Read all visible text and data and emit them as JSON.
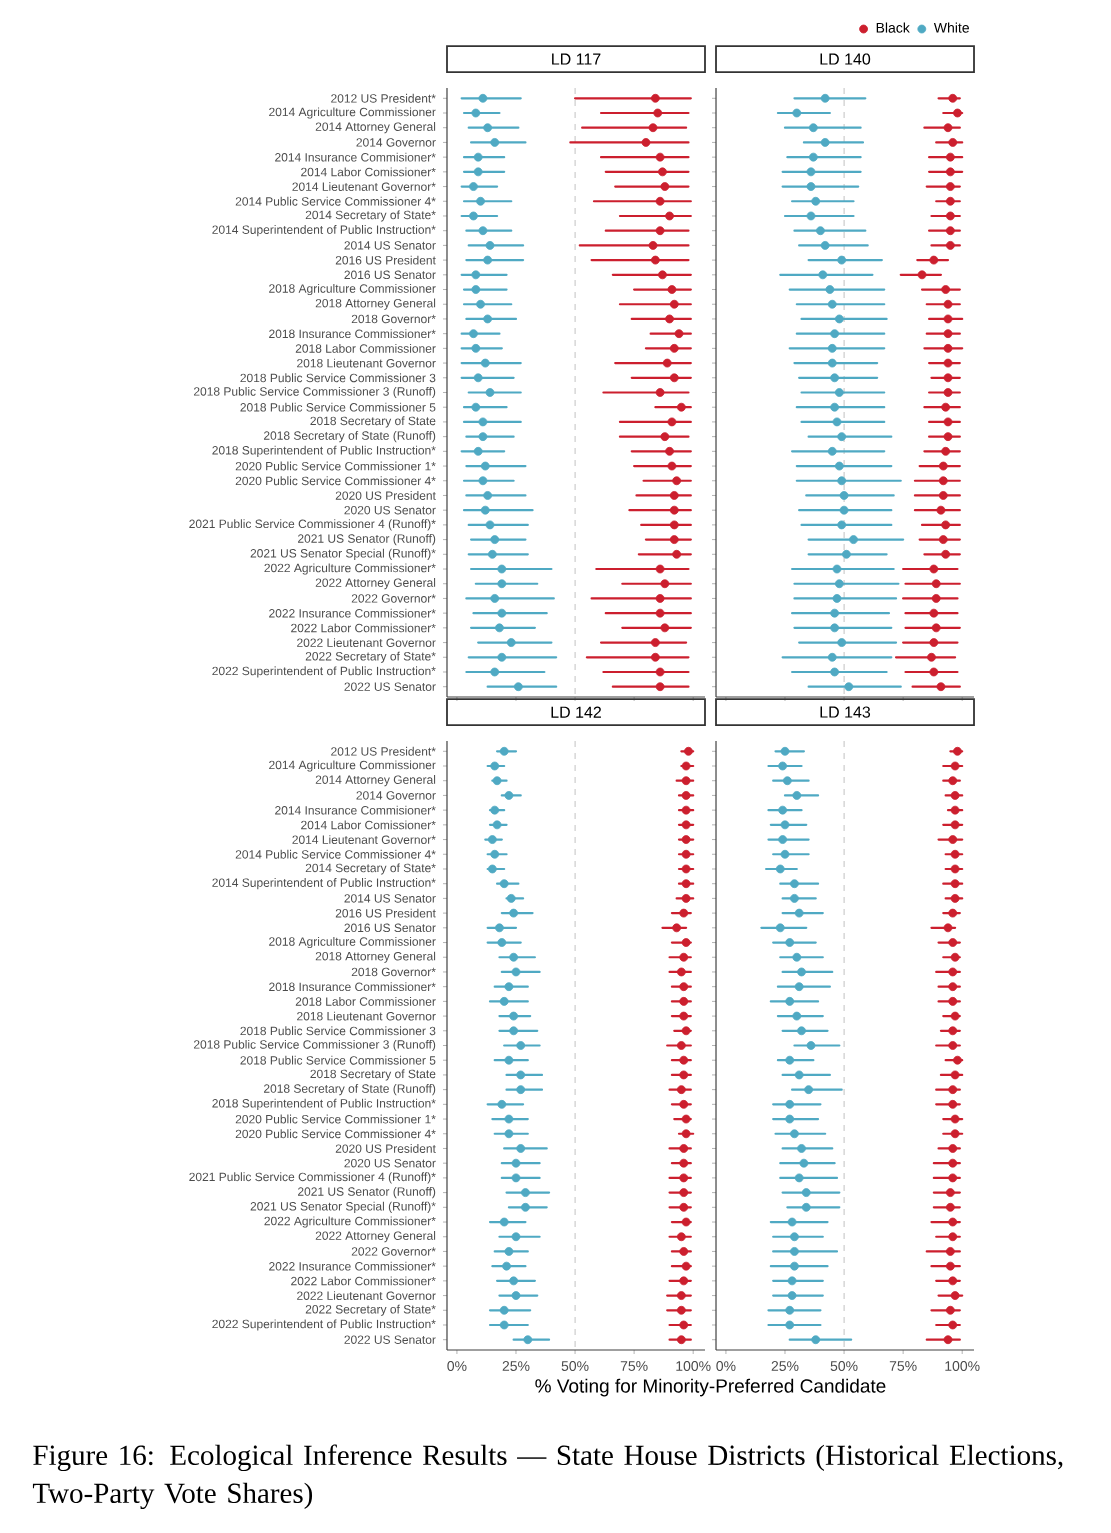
{
  "chart_data": [
    {
      "type": "scatter",
      "orientation": "horizontal",
      "title": "LD 117",
      "tick_labels": "y",
      "marker": "circle",
      "xlim": [
        -4.2,
        105
      ],
      "xticks": [
        {
          "value": 0,
          "label": null
        },
        {
          "value": 25,
          "label": null
        },
        {
          "value": 50,
          "label": null
        },
        {
          "value": 75,
          "label": null
        },
        {
          "value": 100,
          "label": null
        }
      ],
      "categories": [
        "2012 US President*",
        "2014 Agriculture Commissioner",
        "2014 Attorney General",
        "2014 Governor",
        "2014 Insurance Commisioner*",
        "2014 Labor Comissioner*",
        "2014 Lieutenant Governor*",
        "2014 Public Service Commissioner 4*",
        "2014 Secretary of State*",
        "2014 Superintendent of Public Instruction*",
        "2014 US Senator",
        "2016 US President",
        "2016 US Senator",
        "2018 Agriculture Commissioner",
        "2018 Attorney General",
        "2018 Governor*",
        "2018 Insurance Commissioner*",
        "2018 Labor Commissioner",
        "2018 Lieutenant Governor",
        "2018 Public Service Commissioner 3",
        "2018 Public Service Commissioner 3 (Runoff)",
        "2018 Public Service Commissioner 5",
        "2018 Secretary of State",
        "2018 Secretary of State (Runoff)",
        "2018 Superintendent of Public Instruction*",
        "2020 Public Service Commissioner 1*",
        "2020 Public Service Commissioner 4*",
        "2020 US President",
        "2020 US Senator",
        "2021 Public Service Commissioner 4 (Runoff)*",
        "2021 US Senator (Runoff)",
        "2021 US Senator Special (Runoff)*",
        "2022 Agriculture Commissioner*",
        "2022 Attorney General",
        "2022 Governor*",
        "2022 Insurance Commissioner*",
        "2022 Labor Commissioner*",
        "2022 Lieutenant Governor",
        "2022 Secretary of State*",
        "2022 Superintendent of Public Instruction*",
        "2022 US Senator"
      ],
      "ref_lines": [
        {
          "axis": "x",
          "value": 50,
          "color": "#bdbdbd",
          "line_style": "dashed"
        }
      ],
      "series": [
        {
          "color": "#cc1f2e",
          "values": [
            84,
            85,
            83,
            80,
            86,
            87,
            88,
            86,
            90,
            86,
            83,
            84,
            87,
            91,
            92,
            90,
            94,
            92,
            89,
            92,
            86,
            95,
            91,
            88,
            90,
            91,
            93,
            92,
            92,
            92,
            92,
            93,
            86,
            88,
            86,
            86,
            88,
            84,
            84,
            86,
            86
          ],
          "errors": [
            [
              50,
              99
            ],
            [
              61,
              98
            ],
            [
              53,
              97
            ],
            [
              48,
              98
            ],
            [
              61,
              98
            ],
            [
              63,
              98
            ],
            [
              67,
              98
            ],
            [
              58,
              99
            ],
            [
              69,
              99
            ],
            [
              63,
              98
            ],
            [
              52,
              98
            ],
            [
              57,
              98
            ],
            [
              66,
              99
            ],
            [
              75,
              99
            ],
            [
              69,
              99
            ],
            [
              74,
              99
            ],
            [
              82,
              99
            ],
            [
              80,
              99
            ],
            [
              67,
              99
            ],
            [
              74,
              99
            ],
            [
              62,
              98
            ],
            [
              84,
              99
            ],
            [
              69,
              99
            ],
            [
              69,
              98
            ],
            [
              74,
              99
            ],
            [
              75,
              99
            ],
            [
              79,
              99
            ],
            [
              76,
              99
            ],
            [
              73,
              99
            ],
            [
              78,
              99
            ],
            [
              80,
              99
            ],
            [
              77,
              99
            ],
            [
              59,
              98
            ],
            [
              70,
              99
            ],
            [
              57,
              99
            ],
            [
              63,
              99
            ],
            [
              70,
              99
            ],
            [
              61,
              97
            ],
            [
              55,
              98
            ],
            [
              62,
              98
            ],
            [
              66,
              98
            ]
          ]
        },
        {
          "color": "#4fa9c3",
          "values": [
            11,
            8,
            13,
            16,
            9,
            9,
            7,
            10,
            7,
            11,
            14,
            13,
            8,
            8,
            10,
            13,
            7,
            8,
            12,
            9,
            14,
            8,
            11,
            11,
            9,
            12,
            11,
            13,
            12,
            14,
            16,
            15,
            19,
            19,
            16,
            19,
            18,
            23,
            19,
            16,
            26
          ],
          "errors": [
            [
              2,
              27
            ],
            [
              3,
              18
            ],
            [
              5,
              26
            ],
            [
              6,
              29
            ],
            [
              3,
              20
            ],
            [
              3,
              20
            ],
            [
              2,
              17
            ],
            [
              3,
              23
            ],
            [
              2,
              17
            ],
            [
              4,
              23
            ],
            [
              5,
              28
            ],
            [
              4,
              28
            ],
            [
              2,
              21
            ],
            [
              3,
              21
            ],
            [
              3,
              23
            ],
            [
              4,
              25
            ],
            [
              2,
              18
            ],
            [
              2,
              19
            ],
            [
              2,
              27
            ],
            [
              2,
              24
            ],
            [
              5,
              27
            ],
            [
              3,
              21
            ],
            [
              3,
              27
            ],
            [
              4,
              24
            ],
            [
              2,
              20
            ],
            [
              4,
              29
            ],
            [
              3,
              24
            ],
            [
              4,
              29
            ],
            [
              3,
              32
            ],
            [
              5,
              30
            ],
            [
              6,
              29
            ],
            [
              5,
              30
            ],
            [
              6,
              40
            ],
            [
              8,
              34
            ],
            [
              4,
              41
            ],
            [
              7,
              38
            ],
            [
              6,
              33
            ],
            [
              9,
              40
            ],
            [
              5,
              42
            ],
            [
              4,
              37
            ],
            [
              13,
              42
            ]
          ]
        }
      ]
    },
    {
      "type": "scatter",
      "orientation": "horizontal",
      "title": "LD 140",
      "tick_labels": false,
      "marker": "circle",
      "legend": "top right",
      "xlim": [
        -4.2,
        105
      ],
      "xticks": [
        {
          "value": 0,
          "label": null
        },
        {
          "value": 25,
          "label": null
        },
        {
          "value": 50,
          "label": null
        },
        {
          "value": 75,
          "label": null
        },
        {
          "value": 100,
          "label": null
        }
      ],
      "categories": [
        null,
        null,
        null,
        null,
        null,
        null,
        null,
        null,
        null,
        null,
        null,
        null,
        null,
        null,
        null,
        null,
        null,
        null,
        null,
        null,
        null,
        null,
        null,
        null,
        null,
        null,
        null,
        null,
        null,
        null,
        null,
        null,
        null,
        null,
        null,
        null,
        null,
        null,
        null,
        null,
        null
      ],
      "ref_lines": [
        {
          "axis": "x",
          "value": 50,
          "color": "#bdbdbd",
          "line_style": "dashed"
        }
      ],
      "series": [
        {
          "name": "Black",
          "color": "#cc1f2e",
          "values": [
            96,
            98,
            94,
            96,
            95,
            95,
            95,
            95,
            95,
            95,
            95,
            88,
            83,
            93,
            94,
            94,
            94,
            94,
            94,
            94,
            94,
            93,
            94,
            94,
            93,
            92,
            92,
            92,
            91,
            93,
            92,
            93,
            88,
            89,
            89,
            88,
            89,
            88,
            87,
            88,
            91
          ],
          "errors": [
            [
              90,
              99
            ],
            [
              92,
              100
            ],
            [
              84,
              99
            ],
            [
              89,
              100
            ],
            [
              86,
              100
            ],
            [
              86,
              100
            ],
            [
              85,
              99
            ],
            [
              89,
              99
            ],
            [
              87,
              99
            ],
            [
              86,
              99
            ],
            [
              87,
              99
            ],
            [
              81,
              94
            ],
            [
              74,
              91
            ],
            [
              83,
              99
            ],
            [
              85,
              99
            ],
            [
              86,
              100
            ],
            [
              85,
              99
            ],
            [
              84,
              100
            ],
            [
              86,
              99
            ],
            [
              87,
              99
            ],
            [
              86,
              99
            ],
            [
              84,
              99
            ],
            [
              86,
              99
            ],
            [
              86,
              99
            ],
            [
              84,
              99
            ],
            [
              82,
              99
            ],
            [
              80,
              99
            ],
            [
              80,
              99
            ],
            [
              80,
              99
            ],
            [
              83,
              99
            ],
            [
              82,
              99
            ],
            [
              84,
              99
            ],
            [
              75,
              98
            ],
            [
              76,
              99
            ],
            [
              75,
              98
            ],
            [
              76,
              98
            ],
            [
              76,
              99
            ],
            [
              75,
              98
            ],
            [
              72,
              97
            ],
            [
              76,
              98
            ],
            [
              79,
              99
            ]
          ]
        },
        {
          "name": "White",
          "color": "#4fa9c3",
          "values": [
            42,
            30,
            37,
            42,
            37,
            36,
            36,
            38,
            36,
            40,
            42,
            49,
            41,
            44,
            45,
            48,
            46,
            45,
            45,
            46,
            48,
            46,
            47,
            49,
            45,
            48,
            49,
            50,
            50,
            49,
            54,
            51,
            47,
            48,
            47,
            46,
            46,
            49,
            45,
            46,
            52
          ],
          "errors": [
            [
              29,
              59
            ],
            [
              22,
              44
            ],
            [
              25,
              57
            ],
            [
              33,
              58
            ],
            [
              26,
              57
            ],
            [
              24,
              57
            ],
            [
              24,
              56
            ],
            [
              28,
              54
            ],
            [
              25,
              54
            ],
            [
              29,
              59
            ],
            [
              31,
              60
            ],
            [
              35,
              66
            ],
            [
              23,
              62
            ],
            [
              27,
              67
            ],
            [
              30,
              67
            ],
            [
              32,
              68
            ],
            [
              30,
              67
            ],
            [
              27,
              67
            ],
            [
              29,
              64
            ],
            [
              31,
              64
            ],
            [
              32,
              67
            ],
            [
              30,
              67
            ],
            [
              32,
              67
            ],
            [
              35,
              70
            ],
            [
              28,
              67
            ],
            [
              30,
              70
            ],
            [
              30,
              74
            ],
            [
              34,
              71
            ],
            [
              31,
              70
            ],
            [
              32,
              70
            ],
            [
              35,
              75
            ],
            [
              35,
              68
            ],
            [
              28,
              71
            ],
            [
              29,
              73
            ],
            [
              29,
              72
            ],
            [
              28,
              69
            ],
            [
              29,
              70
            ],
            [
              31,
              72
            ],
            [
              24,
              70
            ],
            [
              28,
              68
            ],
            [
              35,
              74
            ]
          ]
        }
      ]
    },
    {
      "type": "scatter",
      "orientation": "horizontal",
      "title": "LD 142",
      "marker": "circle",
      "xlim": [
        -4.2,
        105
      ],
      "xlabel": "% Voting for Minority-Preferred Candidate",
      "annotations": [
        "Figure 16: Ecological Inference Results — State House Districts (Historical Elections, Two-Party Vote Shares)"
      ],
      "xticks": [
        {
          "value": 0,
          "label": "0%"
        },
        {
          "value": 25,
          "label": "25%"
        },
        {
          "value": 50,
          "label": "50%"
        },
        {
          "value": 75,
          "label": "75%"
        },
        {
          "value": 100,
          "label": "100%"
        }
      ],
      "categories": [
        "2012 US President*",
        "2014 Agriculture Commissioner",
        "2014 Attorney General",
        "2014 Governor",
        "2014 Insurance Commisioner*",
        "2014 Labor Comissioner*",
        "2014 Lieutenant Governor*",
        "2014 Public Service Commissioner 4*",
        "2014 Secretary of State*",
        "2014 Superintendent of Public Instruction*",
        "2014 US Senator",
        "2016 US President",
        "2016 US Senator",
        "2018 Agriculture Commissioner",
        "2018 Attorney General",
        "2018 Governor*",
        "2018 Insurance Commissioner*",
        "2018 Labor Commissioner",
        "2018 Lieutenant Governor",
        "2018 Public Service Commissioner 3",
        "2018 Public Service Commissioner 3 (Runoff)",
        "2018 Public Service Commissioner 5",
        "2018 Secretary of State",
        "2018 Secretary of State (Runoff)",
        "2018 Superintendent of Public Instruction*",
        "2020 Public Service Commissioner 1*",
        "2020 Public Service Commissioner 4*",
        "2020 US President",
        "2020 US Senator",
        "2021 Public Service Commissioner 4 (Runoff)*",
        "2021 US Senator (Runoff)",
        "2021 US Senator Special (Runoff)*",
        "2022 Agriculture Commissioner*",
        "2022 Attorney General",
        "2022 Governor*",
        "2022 Insurance Commissioner*",
        "2022 Labor Commissioner*",
        "2022 Lieutenant Governor",
        "2022 Secretary of State*",
        "2022 Superintendent of Public Instruction*",
        "2022 US Senator"
      ],
      "ref_lines": [
        {
          "axis": "x",
          "value": 50,
          "color": "#bdbdbd",
          "line_style": "dashed"
        }
      ],
      "series": [
        {
          "color": "#cc1f2e",
          "values": [
            98,
            97,
            97,
            97,
            97,
            97,
            97,
            97,
            97,
            97,
            97,
            96,
            93,
            97,
            96,
            95,
            96,
            96,
            96,
            97,
            95,
            96,
            96,
            95,
            96,
            97,
            97,
            96,
            96,
            96,
            96,
            96,
            97,
            95,
            96,
            97,
            96,
            95,
            95,
            96,
            95
          ],
          "errors": [
            [
              95,
              100
            ],
            [
              95,
              100
            ],
            [
              93,
              100
            ],
            [
              94,
              100
            ],
            [
              94,
              100
            ],
            [
              94,
              100
            ],
            [
              94,
              100
            ],
            [
              94,
              100
            ],
            [
              94,
              100
            ],
            [
              94,
              100
            ],
            [
              93,
              100
            ],
            [
              91,
              99
            ],
            [
              87,
              97
            ],
            [
              91,
              99
            ],
            [
              90,
              99
            ],
            [
              90,
              99
            ],
            [
              91,
              99
            ],
            [
              91,
              99
            ],
            [
              91,
              99
            ],
            [
              92,
              99
            ],
            [
              89,
              99
            ],
            [
              91,
              99
            ],
            [
              91,
              99
            ],
            [
              90,
              99
            ],
            [
              91,
              99
            ],
            [
              92,
              99
            ],
            [
              94,
              100
            ],
            [
              90,
              99
            ],
            [
              91,
              99
            ],
            [
              90,
              99
            ],
            [
              90,
              99
            ],
            [
              90,
              99
            ],
            [
              91,
              99
            ],
            [
              90,
              99
            ],
            [
              91,
              99
            ],
            [
              91,
              99
            ],
            [
              90,
              99
            ],
            [
              89,
              99
            ],
            [
              89,
              99
            ],
            [
              90,
              99
            ],
            [
              90,
              99
            ]
          ]
        },
        {
          "color": "#4fa9c3",
          "values": [
            20,
            16,
            17,
            22,
            16,
            17,
            15,
            16,
            15,
            20,
            23,
            24,
            18,
            19,
            24,
            25,
            22,
            20,
            24,
            24,
            27,
            22,
            27,
            27,
            19,
            22,
            22,
            27,
            25,
            25,
            29,
            29,
            20,
            25,
            22,
            21,
            24,
            25,
            20,
            20,
            30
          ],
          "errors": [
            [
              17,
              25
            ],
            [
              13,
              20
            ],
            [
              15,
              21
            ],
            [
              19,
              27
            ],
            [
              14,
              20
            ],
            [
              14,
              21
            ],
            [
              12,
              19
            ],
            [
              13,
              21
            ],
            [
              13,
              20
            ],
            [
              17,
              26
            ],
            [
              21,
              28
            ],
            [
              19,
              32
            ],
            [
              13,
              25
            ],
            [
              13,
              27
            ],
            [
              18,
              33
            ],
            [
              19,
              35
            ],
            [
              16,
              30
            ],
            [
              14,
              30
            ],
            [
              18,
              31
            ],
            [
              18,
              34
            ],
            [
              20,
              35
            ],
            [
              16,
              30
            ],
            [
              21,
              36
            ],
            [
              21,
              36
            ],
            [
              13,
              28
            ],
            [
              15,
              30
            ],
            [
              16,
              30
            ],
            [
              20,
              38
            ],
            [
              19,
              35
            ],
            [
              19,
              35
            ],
            [
              21,
              39
            ],
            [
              22,
              38
            ],
            [
              14,
              29
            ],
            [
              18,
              35
            ],
            [
              16,
              30
            ],
            [
              15,
              29
            ],
            [
              17,
              33
            ],
            [
              18,
              34
            ],
            [
              14,
              31
            ],
            [
              14,
              30
            ],
            [
              24,
              39
            ]
          ]
        }
      ]
    },
    {
      "type": "scatter",
      "orientation": "horizontal",
      "title": "LD 143",
      "tick_labels": "x",
      "marker": "circle",
      "xlim": [
        -4.2,
        105
      ],
      "xticks": [
        {
          "value": 0,
          "label": "0%"
        },
        {
          "value": 25,
          "label": "25%"
        },
        {
          "value": 50,
          "label": "50%"
        },
        {
          "value": 75,
          "label": "75%"
        },
        {
          "value": 100,
          "label": "100%"
        }
      ],
      "categories": [
        null,
        null,
        null,
        null,
        null,
        null,
        null,
        null,
        null,
        null,
        null,
        null,
        null,
        null,
        null,
        null,
        null,
        null,
        null,
        null,
        null,
        null,
        null,
        null,
        null,
        null,
        null,
        null,
        null,
        null,
        null,
        null,
        null,
        null,
        null,
        null,
        null,
        null,
        null,
        null,
        null
      ],
      "ref_lines": [
        {
          "axis": "x",
          "value": 50,
          "color": "#bdbdbd",
          "line_style": "dashed"
        }
      ],
      "series": [
        {
          "color": "#cc1f2e",
          "values": [
            98,
            97,
            96,
            97,
            97,
            97,
            96,
            97,
            97,
            97,
            97,
            96,
            94,
            96,
            97,
            96,
            96,
            96,
            97,
            96,
            96,
            98,
            97,
            96,
            96,
            97,
            97,
            96,
            96,
            96,
            95,
            95,
            96,
            96,
            95,
            95,
            96,
            97,
            95,
            96,
            94
          ],
          "errors": [
            [
              95,
              100
            ],
            [
              92,
              100
            ],
            [
              92,
              99
            ],
            [
              93,
              100
            ],
            [
              94,
              100
            ],
            [
              92,
              100
            ],
            [
              90,
              100
            ],
            [
              93,
              100
            ],
            [
              93,
              100
            ],
            [
              92,
              100
            ],
            [
              93,
              100
            ],
            [
              92,
              99
            ],
            [
              87,
              97
            ],
            [
              90,
              99
            ],
            [
              92,
              99
            ],
            [
              89,
              99
            ],
            [
              90,
              99
            ],
            [
              90,
              99
            ],
            [
              92,
              99
            ],
            [
              91,
              99
            ],
            [
              89,
              99
            ],
            [
              93,
              100
            ],
            [
              91,
              100
            ],
            [
              89,
              99
            ],
            [
              89,
              99
            ],
            [
              92,
              100
            ],
            [
              92,
              100
            ],
            [
              90,
              99
            ],
            [
              88,
              99
            ],
            [
              88,
              99
            ],
            [
              88,
              99
            ],
            [
              88,
              99
            ],
            [
              87,
              99
            ],
            [
              89,
              99
            ],
            [
              85,
              99
            ],
            [
              87,
              99
            ],
            [
              89,
              99
            ],
            [
              90,
              100
            ],
            [
              87,
              99
            ],
            [
              89,
              99
            ],
            [
              85,
              99
            ]
          ]
        },
        {
          "color": "#4fa9c3",
          "values": [
            25,
            24,
            26,
            30,
            24,
            25,
            24,
            25,
            23,
            29,
            29,
            31,
            23,
            27,
            30,
            32,
            31,
            27,
            30,
            32,
            36,
            27,
            31,
            35,
            27,
            27,
            29,
            32,
            33,
            31,
            34,
            34,
            28,
            29,
            29,
            29,
            28,
            28,
            27,
            27,
            38
          ],
          "errors": [
            [
              21,
              33
            ],
            [
              18,
              32
            ],
            [
              20,
              35
            ],
            [
              25,
              39
            ],
            [
              18,
              32
            ],
            [
              19,
              34
            ],
            [
              18,
              35
            ],
            [
              20,
              35
            ],
            [
              17,
              30
            ],
            [
              23,
              39
            ],
            [
              24,
              38
            ],
            [
              24,
              41
            ],
            [
              15,
              34
            ],
            [
              20,
              38
            ],
            [
              23,
              41
            ],
            [
              24,
              45
            ],
            [
              22,
              44
            ],
            [
              19,
              39
            ],
            [
              22,
              41
            ],
            [
              24,
              43
            ],
            [
              29,
              48
            ],
            [
              22,
              37
            ],
            [
              24,
              44
            ],
            [
              28,
              49
            ],
            [
              20,
              40
            ],
            [
              20,
              39
            ],
            [
              21,
              42
            ],
            [
              24,
              45
            ],
            [
              23,
              46
            ],
            [
              23,
              47
            ],
            [
              24,
              48
            ],
            [
              26,
              48
            ],
            [
              19,
              43
            ],
            [
              20,
              41
            ],
            [
              20,
              47
            ],
            [
              19,
              43
            ],
            [
              20,
              41
            ],
            [
              20,
              41
            ],
            [
              18,
              40
            ],
            [
              18,
              40
            ],
            [
              27,
              53
            ]
          ]
        }
      ]
    }
  ]
}
